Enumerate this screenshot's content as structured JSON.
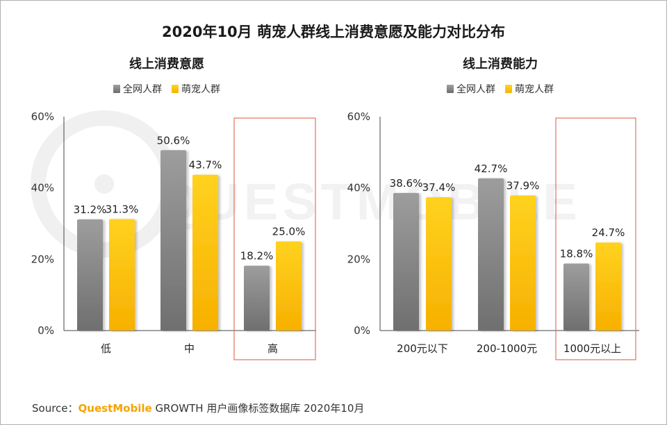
{
  "title": "2020年10月 萌宠人群线上消费意愿及能力对比分布",
  "colors": {
    "all": "#888888",
    "pet": "#ffc000",
    "highlight": "#e2715a"
  },
  "legend": {
    "all_label": "全网人群",
    "pet_label": "萌宠人群"
  },
  "watermark": "QUESTMOBILE",
  "source": {
    "prefix": "Source：",
    "brand": "QuestMobile",
    "rest": "GROWTH 用户画像标签数据库 2020年10月"
  },
  "chart_data": [
    {
      "type": "bar",
      "title": "线上消费意愿",
      "categories": [
        "低",
        "中",
        "高"
      ],
      "series": [
        {
          "name": "全网人群",
          "values": [
            31.2,
            50.6,
            18.2
          ]
        },
        {
          "name": "萌宠人群",
          "values": [
            31.3,
            43.7,
            25.0
          ]
        }
      ],
      "value_labels": {
        "全网人群": [
          "31.2%",
          "50.6%",
          "18.2%"
        ],
        "萌宠人群": [
          "31.3%",
          "43.7%",
          "25.0%"
        ]
      },
      "ylim": [
        0,
        60
      ],
      "yticks": [
        "0%",
        "20%",
        "40%",
        "60%"
      ],
      "highlight_category": "高"
    },
    {
      "type": "bar",
      "title": "线上消费能力",
      "categories": [
        "200元以下",
        "200-1000元",
        "1000元以上"
      ],
      "series": [
        {
          "name": "全网人群",
          "values": [
            38.6,
            42.7,
            18.8
          ]
        },
        {
          "name": "萌宠人群",
          "values": [
            37.4,
            37.9,
            24.7
          ]
        }
      ],
      "value_labels": {
        "全网人群": [
          "38.6%",
          "42.7%",
          "18.8%"
        ],
        "萌宠人群": [
          "37.4%",
          "37.9%",
          "24.7%"
        ]
      },
      "ylim": [
        0,
        60
      ],
      "yticks": [
        "0%",
        "20%",
        "40%",
        "60%"
      ],
      "highlight_category": "1000元以上"
    }
  ]
}
